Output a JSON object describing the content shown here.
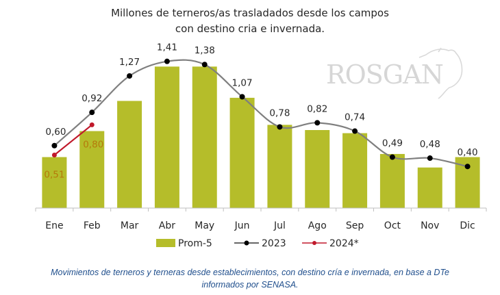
{
  "chart_data": {
    "type": "bar",
    "title": "Millones de terneros/as trasladados desde los campos con destino cria e invernada.",
    "title_lines": [
      "Millones de terneros/as trasladados desde los campos",
      "con destino cria e invernada."
    ],
    "categories": [
      "Ene",
      "Feb",
      "Mar",
      "Abr",
      "May",
      "Jun",
      "Jul",
      "Ago",
      "Sep",
      "Oct",
      "Nov",
      "Dic"
    ],
    "xlabel": "",
    "ylabel": "",
    "ylim": [
      0,
      1.55
    ],
    "grid": false,
    "legend_position": "bottom",
    "series": [
      {
        "name": "Prom-5",
        "kind": "bar",
        "color": "#b5bd2a",
        "values": [
          0.49,
          0.74,
          1.03,
          1.36,
          1.36,
          1.06,
          0.8,
          0.75,
          0.72,
          0.52,
          0.39,
          0.49
        ]
      },
      {
        "name": "2023",
        "kind": "line",
        "color": "#7f7f7f",
        "marker_color": "#000000",
        "values": [
          0.6,
          0.92,
          1.27,
          1.41,
          1.38,
          1.07,
          0.78,
          0.82,
          0.74,
          0.49,
          0.48,
          0.4
        ],
        "labels": [
          "0,60",
          "0,92",
          "1,27",
          "1,41",
          "1,38",
          "1,07",
          "0,78",
          "0,82",
          "0,74",
          "0,49",
          "0,48",
          "0,40"
        ]
      },
      {
        "name": "2024*",
        "kind": "line",
        "color": "#c0192b",
        "marker_color": "#c0192b",
        "values": [
          0.51,
          0.8
        ],
        "labels": [
          "0,51",
          "0,80"
        ],
        "label_color": "#b5790a"
      }
    ]
  },
  "legend": [
    {
      "label": "Prom-5"
    },
    {
      "label": "2023"
    },
    {
      "label": "2024*"
    }
  ],
  "logo": {
    "text": "ROSGAN"
  },
  "caption": {
    "line1": "Movimientos de terneros y terneras desde establecimientos, con destino cría e invernada, en base a DTe",
    "line2": "informados por SENASA."
  }
}
